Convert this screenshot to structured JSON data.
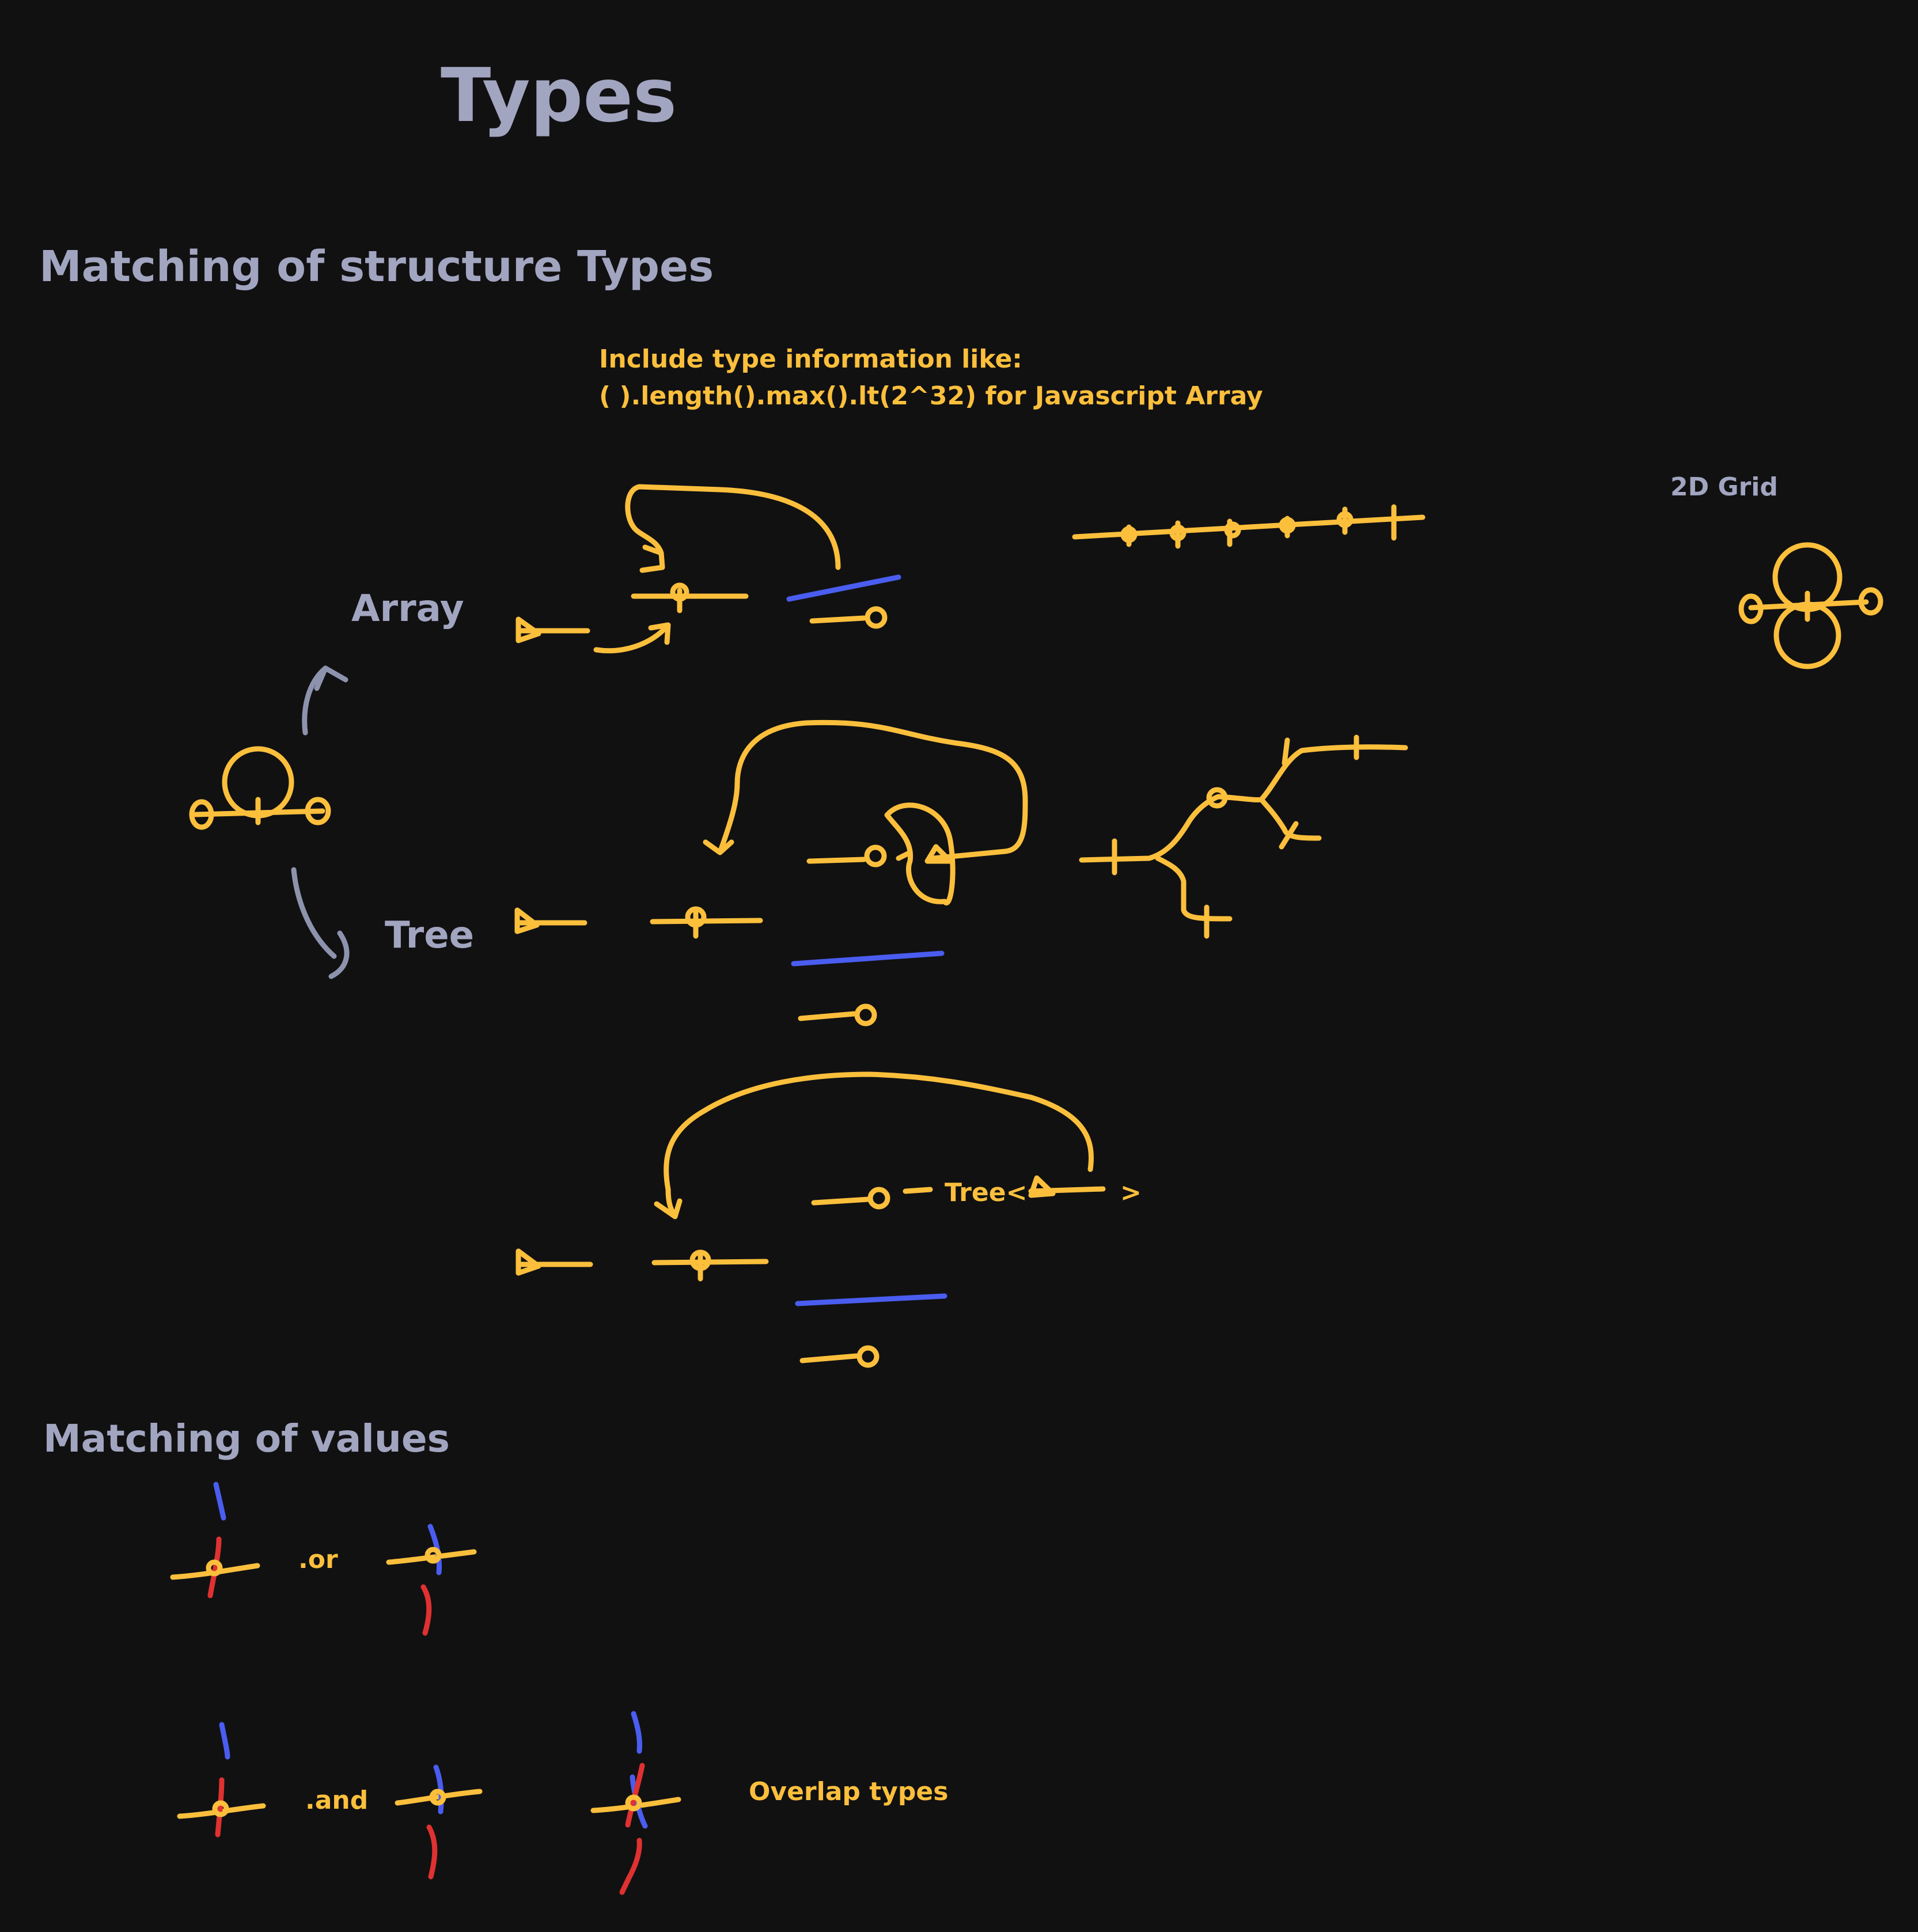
{
  "title": "Types",
  "sections": {
    "structure": "Matching of structure Types",
    "values": "Matching of values"
  },
  "note": {
    "line1": "Include type information like:",
    "line2": "( ).length().max().lt(2^32) for Javascript Array"
  },
  "labels": {
    "array": "Array",
    "tree": "Tree",
    "grid": "2D Grid",
    "tree_generic_open": "Tree<",
    "tree_generic_close": ">",
    "or": ".or",
    "and": ".and",
    "overlap": "Overlap types"
  },
  "colors": {
    "background": "#111112",
    "accent_yellow": "#fbbf3c",
    "accent_blue": "#4a5df0",
    "accent_red": "#e03131",
    "text_grey": "#a2a5c0"
  }
}
